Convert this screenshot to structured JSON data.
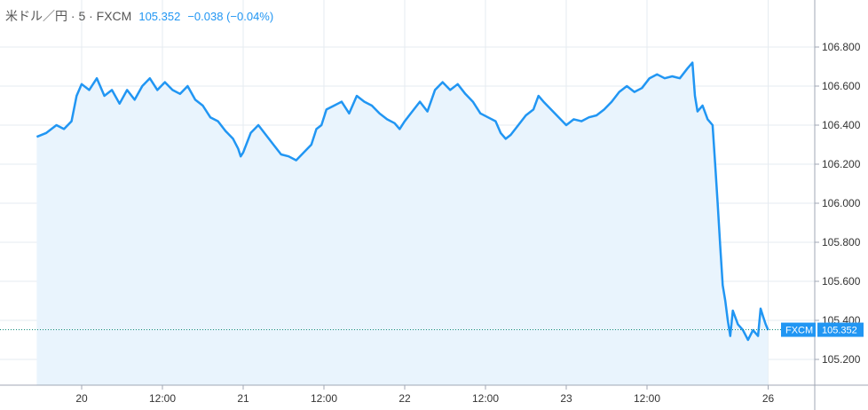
{
  "header": {
    "symbol": "米ドル／円 · 5 · FXCM",
    "last_price": "105.352",
    "change": "−0.038 (−0.04%)"
  },
  "price_badge": {
    "source": "FXCM",
    "price": "105.352"
  },
  "colors": {
    "line": "#2196f3",
    "fill": "#e9f4fd",
    "grid": "#e6ebf0",
    "axis": "#a0a7b4",
    "badge": "#2196f3",
    "current_line": "#0e8a7a"
  },
  "chart_data": {
    "type": "area",
    "title": "",
    "xlabel": "",
    "ylabel": "",
    "ylim": [
      105.12,
      106.94
    ],
    "xlim": [
      -8.9,
      156.3
    ],
    "y_ticks": [
      "105.200",
      "105.400",
      "105.600",
      "105.800",
      "106.000",
      "106.200",
      "106.400",
      "106.600",
      "106.800"
    ],
    "x_ticks": [
      {
        "label": "20",
        "x": 0
      },
      {
        "label": "12:00",
        "x": 16
      },
      {
        "label": "21",
        "x": 32
      },
      {
        "label": "12:00",
        "x": 48
      },
      {
        "label": "22",
        "x": 64
      },
      {
        "label": "12:00",
        "x": 80
      },
      {
        "label": "23",
        "x": 96
      },
      {
        "label": "12:00",
        "x": 112
      },
      {
        "label": "26",
        "x": 136
      }
    ],
    "current_value": 105.352,
    "series": [
      {
        "points": [
          [
            -8.9,
            106.34
          ],
          [
            -7,
            106.36
          ],
          [
            -5,
            106.4
          ],
          [
            -3.5,
            106.38
          ],
          [
            -2,
            106.42
          ],
          [
            -1,
            106.55
          ],
          [
            0,
            106.61
          ],
          [
            1.5,
            106.58
          ],
          [
            3,
            106.64
          ],
          [
            4.5,
            106.55
          ],
          [
            6,
            106.58
          ],
          [
            7.5,
            106.51
          ],
          [
            9,
            106.58
          ],
          [
            10.5,
            106.53
          ],
          [
            12,
            106.6
          ],
          [
            13.5,
            106.64
          ],
          [
            15,
            106.58
          ],
          [
            16.5,
            106.62
          ],
          [
            18,
            106.58
          ],
          [
            19.5,
            106.56
          ],
          [
            21,
            106.6
          ],
          [
            22.5,
            106.53
          ],
          [
            24,
            106.5
          ],
          [
            25.5,
            106.44
          ],
          [
            27,
            106.42
          ],
          [
            28.5,
            106.37
          ],
          [
            30,
            106.33
          ],
          [
            31,
            106.28
          ],
          [
            31.5,
            106.24
          ],
          [
            32,
            106.26
          ],
          [
            33.5,
            106.36
          ],
          [
            35,
            106.4
          ],
          [
            36.5,
            106.35
          ],
          [
            38,
            106.3
          ],
          [
            39.5,
            106.25
          ],
          [
            41,
            106.24
          ],
          [
            42.5,
            106.22
          ],
          [
            44,
            106.26
          ],
          [
            45.5,
            106.3
          ],
          [
            46.5,
            106.38
          ],
          [
            47.5,
            106.4
          ],
          [
            48.5,
            106.48
          ],
          [
            50,
            106.5
          ],
          [
            51.5,
            106.52
          ],
          [
            53,
            106.46
          ],
          [
            54.5,
            106.55
          ],
          [
            56,
            106.52
          ],
          [
            57.5,
            106.5
          ],
          [
            59,
            106.46
          ],
          [
            60.5,
            106.43
          ],
          [
            62,
            106.41
          ],
          [
            63,
            106.38
          ],
          [
            64,
            106.42
          ],
          [
            65.5,
            106.47
          ],
          [
            67,
            106.52
          ],
          [
            68.5,
            106.47
          ],
          [
            70,
            106.58
          ],
          [
            71.5,
            106.62
          ],
          [
            73,
            106.58
          ],
          [
            74.5,
            106.61
          ],
          [
            76,
            106.56
          ],
          [
            77.5,
            106.52
          ],
          [
            79,
            106.46
          ],
          [
            80.5,
            106.44
          ],
          [
            82,
            106.42
          ],
          [
            83,
            106.36
          ],
          [
            84,
            106.33
          ],
          [
            85,
            106.35
          ],
          [
            86.5,
            106.4
          ],
          [
            88,
            106.45
          ],
          [
            89.5,
            106.48
          ],
          [
            90.5,
            106.55
          ],
          [
            91.5,
            106.52
          ],
          [
            93,
            106.48
          ],
          [
            94.5,
            106.44
          ],
          [
            96,
            106.4
          ],
          [
            97.5,
            106.43
          ],
          [
            99,
            106.42
          ],
          [
            100.5,
            106.44
          ],
          [
            102,
            106.45
          ],
          [
            103.5,
            106.48
          ],
          [
            105,
            106.52
          ],
          [
            106.5,
            106.57
          ],
          [
            108,
            106.6
          ],
          [
            109.5,
            106.57
          ],
          [
            111,
            106.59
          ],
          [
            112.5,
            106.64
          ],
          [
            114,
            106.66
          ],
          [
            115.5,
            106.64
          ],
          [
            117,
            106.65
          ],
          [
            118.5,
            106.64
          ],
          [
            120,
            106.69
          ],
          [
            121,
            106.72
          ],
          [
            121.5,
            106.55
          ],
          [
            122,
            106.47
          ],
          [
            123,
            106.5
          ],
          [
            124,
            106.43
          ],
          [
            125,
            106.4
          ],
          [
            125.5,
            106.2
          ],
          [
            126,
            106.0
          ],
          [
            126.5,
            105.78
          ],
          [
            127,
            105.58
          ],
          [
            127.5,
            105.5
          ],
          [
            128,
            105.4
          ],
          [
            128.5,
            105.32
          ],
          [
            129,
            105.45
          ],
          [
            130,
            105.38
          ],
          [
            131,
            105.35
          ],
          [
            132,
            105.3
          ],
          [
            133,
            105.35
          ],
          [
            134,
            105.32
          ],
          [
            134.5,
            105.46
          ],
          [
            135,
            105.42
          ],
          [
            135.5,
            105.38
          ],
          [
            136,
            105.35
          ]
        ]
      }
    ]
  }
}
